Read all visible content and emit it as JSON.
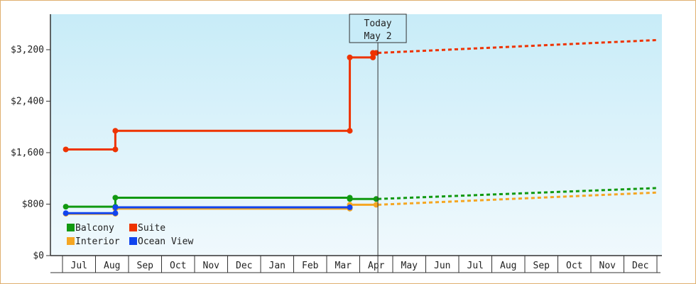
{
  "chart_data": {
    "type": "line",
    "title": "",
    "xlabel": "",
    "ylabel": "",
    "ylim": [
      0,
      3200
    ],
    "y_ticks": [
      0,
      800,
      1600,
      2400,
      3200
    ],
    "y_tick_labels": [
      "$0",
      "$800",
      "$1,600",
      "$2,400",
      "$3,200"
    ],
    "x_tick_labels": [
      "Jul",
      "Aug",
      "Sep",
      "Oct",
      "Nov",
      "Dec",
      "Jan",
      "Feb",
      "Mar",
      "Apr",
      "May",
      "Jun",
      "Jul",
      "Aug",
      "Sep",
      "Oct",
      "Nov",
      "Dec"
    ],
    "today": {
      "line1": "Today",
      "line2": "May 2",
      "month_index": 9.05
    },
    "grid": false,
    "legend_position": "bottom-left",
    "series": [
      {
        "name": "Balcony",
        "color": "#119911",
        "history": [
          [
            -0.4,
            760
          ],
          [
            1.1,
            760
          ],
          [
            1.1,
            900
          ],
          [
            8.2,
            900
          ],
          [
            8.2,
            880
          ],
          [
            9.0,
            880
          ]
        ],
        "forecast": [
          [
            9.05,
            880
          ],
          [
            17.5,
            1050
          ]
        ]
      },
      {
        "name": "Suite",
        "color": "#ee3300",
        "history": [
          [
            -0.4,
            1650
          ],
          [
            1.1,
            1650
          ],
          [
            1.1,
            1940
          ],
          [
            8.2,
            1940
          ],
          [
            8.2,
            3080
          ],
          [
            8.9,
            3080
          ],
          [
            8.9,
            3150
          ],
          [
            9.0,
            3150
          ]
        ],
        "forecast": [
          [
            9.05,
            3150
          ],
          [
            17.5,
            3350
          ]
        ]
      },
      {
        "name": "Interior",
        "color": "#f5a623",
        "history": [
          [
            -0.4,
            650
          ],
          [
            1.1,
            650
          ],
          [
            1.1,
            730
          ],
          [
            8.2,
            730
          ],
          [
            8.2,
            790
          ],
          [
            9.0,
            790
          ]
        ],
        "forecast": [
          [
            9.05,
            790
          ],
          [
            17.5,
            980
          ]
        ]
      },
      {
        "name": "Ocean View",
        "color": "#1144ee",
        "history": [
          [
            -0.4,
            660
          ],
          [
            1.1,
            660
          ],
          [
            1.1,
            750
          ],
          [
            8.2,
            750
          ]
        ],
        "forecast": []
      }
    ]
  }
}
